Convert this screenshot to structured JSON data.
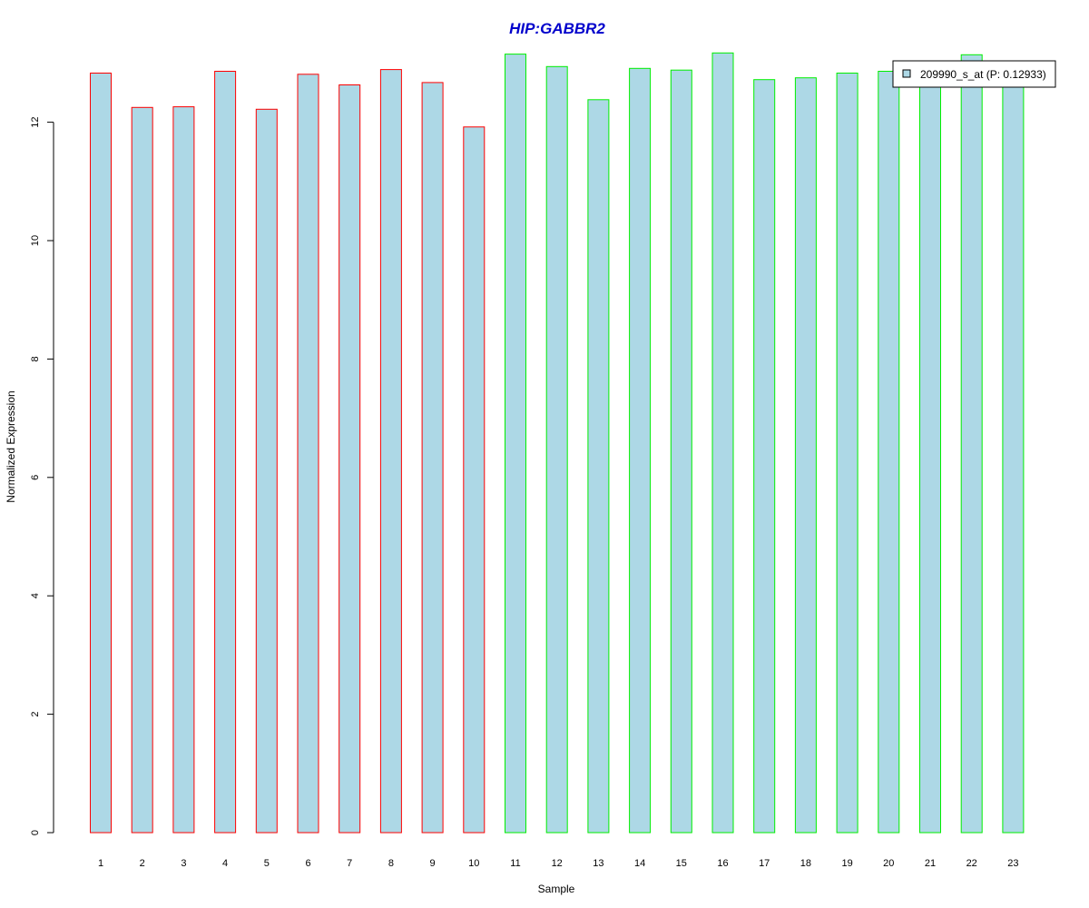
{
  "chart_data": {
    "type": "bar",
    "title": "HIP:GABBR2",
    "xlabel": "Sample",
    "ylabel": "Normalized Expression",
    "categories": [
      "1",
      "2",
      "3",
      "4",
      "5",
      "6",
      "7",
      "8",
      "9",
      "10",
      "11",
      "12",
      "13",
      "14",
      "15",
      "16",
      "17",
      "18",
      "19",
      "20",
      "21",
      "22",
      "23"
    ],
    "values": [
      12.83,
      12.25,
      12.26,
      12.86,
      12.22,
      12.81,
      12.63,
      12.89,
      12.67,
      11.92,
      13.15,
      12.94,
      12.38,
      12.91,
      12.88,
      13.17,
      12.72,
      12.75,
      12.83,
      12.86,
      12.92,
      13.14,
      12.86
    ],
    "border_colors": [
      "#ff0000",
      "#ff0000",
      "#ff0000",
      "#ff0000",
      "#ff0000",
      "#ff0000",
      "#ff0000",
      "#ff0000",
      "#ff0000",
      "#ff0000",
      "#00ee00",
      "#00ee00",
      "#00ee00",
      "#00ee00",
      "#00ee00",
      "#00ee00",
      "#00ee00",
      "#00ee00",
      "#00ee00",
      "#00ee00",
      "#00ee00",
      "#00ee00",
      "#00ee00"
    ],
    "fill_color": "#add8e6",
    "title_color": "#0000cc",
    "yticks": [
      "0",
      "2",
      "4",
      "6",
      "8",
      "10",
      "12"
    ],
    "ylim": [
      0,
      13.2
    ],
    "grid": false,
    "legend": {
      "label": "209990_s_at (P: 0.12933)",
      "placement": "top-right"
    }
  }
}
